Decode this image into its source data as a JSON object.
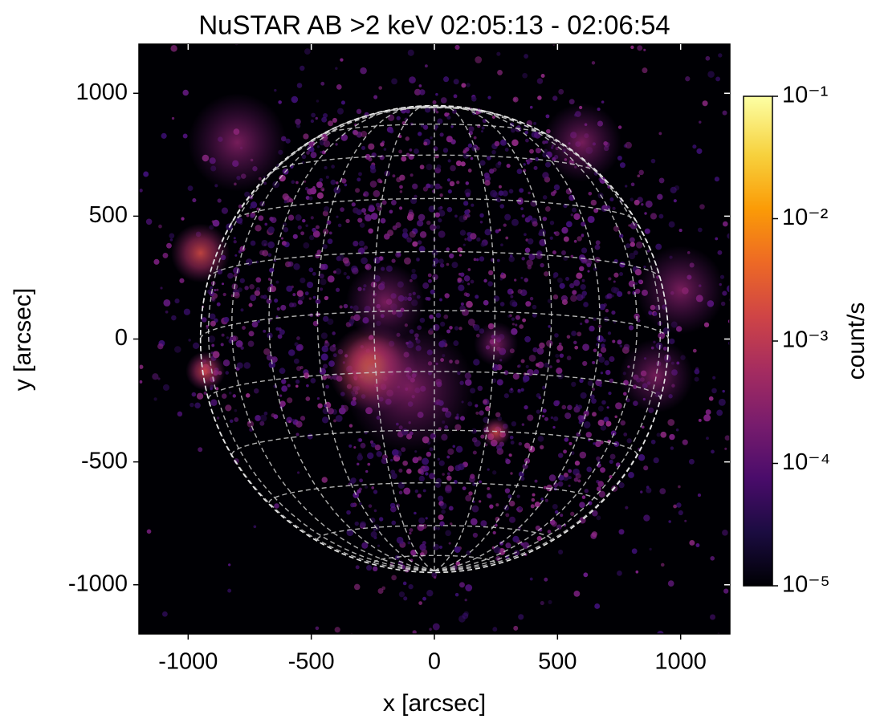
{
  "chart_data": {
    "type": "image",
    "title": "NuSTAR AB >2 keV 02:05:13 - 02:06:54",
    "x_label": "x [arcsec]",
    "y_label": "y [arcsec]",
    "xlim": [
      -1200,
      1200
    ],
    "ylim": [
      -1200,
      1200
    ],
    "xticks": [
      -1000,
      -500,
      0,
      500,
      1000
    ],
    "yticks": [
      -1000,
      -500,
      0,
      500,
      1000
    ],
    "cmap": "inferno",
    "colorbar": {
      "label": "count/s",
      "log_scale": true,
      "lim": [
        1e-05,
        0.1
      ],
      "ticks": [
        {
          "value": 1e-05,
          "label": "10⁻⁵"
        },
        {
          "value": 0.0001,
          "label": "10⁻⁴"
        },
        {
          "value": 0.001,
          "label": "10⁻³"
        },
        {
          "value": 0.01,
          "label": "10⁻²"
        },
        {
          "value": 0.1,
          "label": "10⁻¹"
        }
      ]
    }
  }
}
